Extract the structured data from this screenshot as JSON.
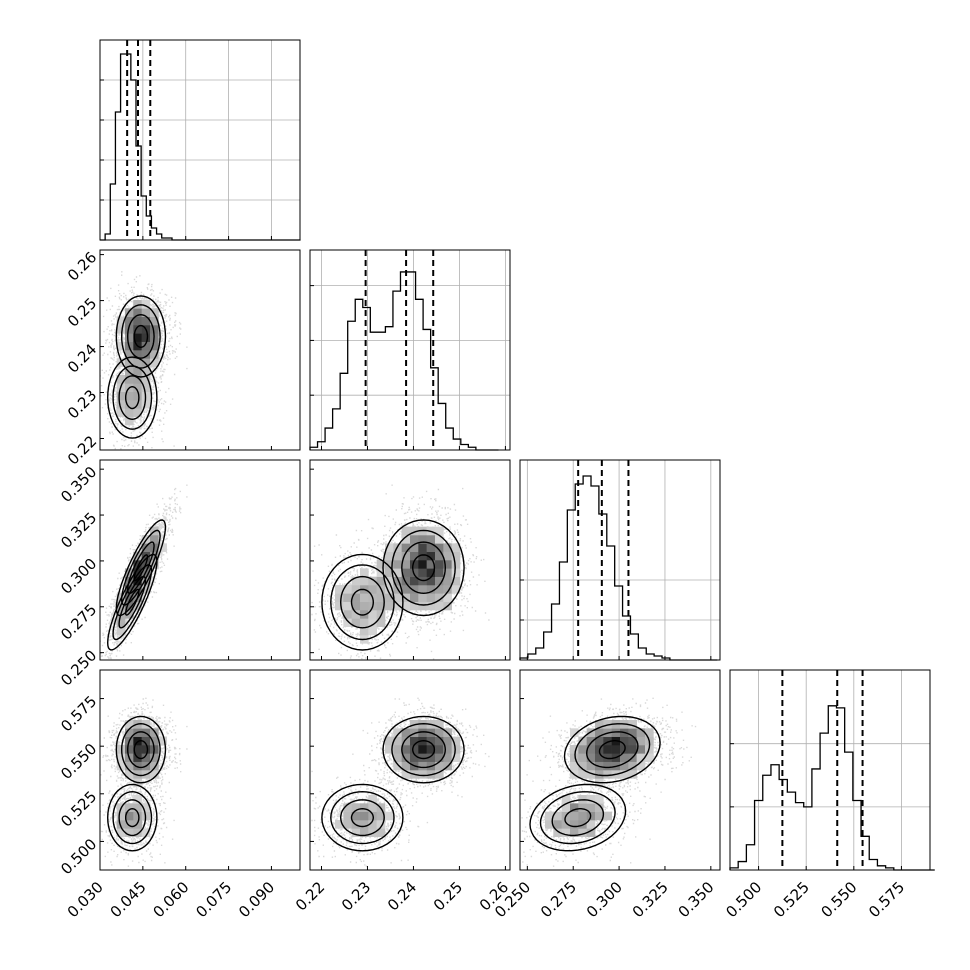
{
  "colors": {
    "ink": "#000000",
    "grid": "#b0b0b0",
    "panel_bg": "#ffffff",
    "scatter": "#000000"
  },
  "chart_data": {
    "type": "corner",
    "grid": true,
    "n_params": 4,
    "axes": [
      {
        "range": [
          0.03,
          0.1
        ],
        "ticks": [
          0.03,
          0.045,
          0.06,
          0.075,
          0.09
        ],
        "tick_labels": [
          "0.030",
          "0.045",
          "0.060",
          "0.075",
          "0.090"
        ]
      },
      {
        "range": [
          0.2175,
          0.261
        ],
        "ticks": [
          0.22,
          0.23,
          0.24,
          0.25,
          0.26
        ],
        "tick_labels": [
          "0.22",
          "0.23",
          "0.24",
          "0.25",
          "0.26"
        ]
      },
      {
        "range": [
          0.246,
          0.355
        ],
        "ticks": [
          0.25,
          0.275,
          0.3,
          0.325,
          0.35
        ],
        "tick_labels": [
          "0.250",
          "0.275",
          "0.300",
          "0.325",
          "0.350"
        ]
      },
      {
        "range": [
          0.485,
          0.59
        ],
        "ticks": [
          0.5,
          0.525,
          0.55,
          0.575
        ],
        "tick_labels": [
          "0.500",
          "0.525",
          "0.550",
          "0.575"
        ]
      }
    ],
    "quantiles": [
      [
        0.0395,
        0.0433,
        0.0476
      ],
      [
        0.2296,
        0.2384,
        0.2443
      ],
      [
        0.2777,
        0.2906,
        0.3051
      ],
      [
        0.5125,
        0.5413,
        0.5546
      ]
    ],
    "histograms": [
      {
        "edges_from": 0.03,
        "bin_width": 0.0018,
        "counts": [
          0,
          3,
          28,
          64,
          93,
          93,
          80,
          47,
          22,
          12,
          6,
          3,
          1,
          1,
          0,
          0,
          0,
          0,
          0,
          0,
          0,
          0,
          0,
          0,
          0,
          0,
          0,
          0,
          0,
          0,
          0,
          0,
          0,
          0,
          0,
          0,
          0,
          0,
          0
        ],
        "ymax": 100
      },
      {
        "edges_from": 0.2175,
        "bin_width": 0.00164,
        "counts": [
          1,
          3,
          8,
          15,
          28,
          47,
          55,
          52,
          43,
          43,
          45,
          58,
          65,
          65,
          55,
          44,
          30,
          17,
          8,
          4,
          2,
          1,
          0,
          0,
          0
        ],
        "ymax": 73
      },
      {
        "edges_from": 0.246,
        "bin_width": 0.0043,
        "counts": [
          1,
          3,
          6,
          14,
          28,
          49,
          75,
          88,
          92,
          87,
          73,
          57,
          37,
          22,
          13,
          6,
          3,
          2,
          1,
          0,
          0,
          0,
          0,
          0,
          0
        ],
        "ymax": 100
      },
      {
        "edges_from": 0.485,
        "bin_width": 0.0043,
        "counts": [
          1,
          4,
          12,
          33,
          45,
          50,
          43,
          37,
          32,
          30,
          48,
          65,
          78,
          77,
          56,
          33,
          16,
          5,
          2,
          1,
          0,
          0,
          0,
          0,
          0
        ],
        "ymax": 95
      }
    ],
    "hist_yticks": [
      [
        20,
        40,
        60,
        80
      ],
      [
        20,
        40,
        60
      ],
      [
        20,
        40
      ],
      [
        30,
        60
      ]
    ],
    "mixture": [
      {
        "w": 0.3,
        "mean": [
          0.0413,
          0.2289,
          0.2775,
          0.5125
        ]
      },
      {
        "w": 0.7,
        "mean": [
          0.0443,
          0.2422,
          0.2963,
          0.5482
        ]
      }
    ],
    "sd": [
      0.0042,
      0.0043,
      0.0127,
      0.0085
    ],
    "corr": [
      [
        1,
        0,
        0.85,
        0
      ],
      [
        0,
        1,
        0,
        0
      ],
      [
        0.85,
        0,
        1,
        0.2
      ],
      [
        0,
        0,
        0.2,
        1
      ]
    ]
  }
}
